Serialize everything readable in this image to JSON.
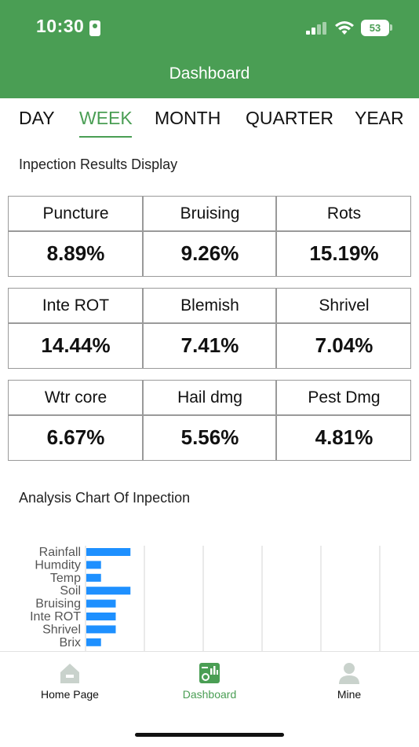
{
  "status_bar": {
    "time": "10:30",
    "battery": "53"
  },
  "header": {
    "title": "Dashboard"
  },
  "tabs": [
    {
      "label": "DAY",
      "active": false
    },
    {
      "label": "WEEK",
      "active": true
    },
    {
      "label": "MONTH",
      "active": false
    },
    {
      "label": "QUARTER",
      "active": false
    },
    {
      "label": "YEAR",
      "active": false
    }
  ],
  "results": {
    "title": "Inpection Results Display",
    "rows": [
      [
        {
          "label": "Puncture",
          "value": "8.89%"
        },
        {
          "label": "Bruising",
          "value": "9.26%"
        },
        {
          "label": "Rots",
          "value": "15.19%"
        }
      ],
      [
        {
          "label": "Inte ROT",
          "value": "14.44%"
        },
        {
          "label": "Blemish",
          "value": "7.41%"
        },
        {
          "label": "Shrivel",
          "value": "7.04%"
        }
      ],
      [
        {
          "label": "Wtr core",
          "value": "6.67%"
        },
        {
          "label": "Hail dmg",
          "value": "5.56%"
        },
        {
          "label": "Pest Dmg",
          "value": "4.81%"
        }
      ]
    ]
  },
  "analysis": {
    "title": "Analysis Chart Of Inpection"
  },
  "chart_data": {
    "type": "bar",
    "orientation": "horizontal",
    "categories": [
      "Rainfall",
      "Humdity",
      "Temp",
      "Soil",
      "Bruising",
      "Inte ROT",
      "Shrivel",
      "Brix"
    ],
    "values": [
      3,
      1,
      1,
      3,
      2,
      2,
      2,
      1
    ],
    "xlim": [
      0,
      20
    ],
    "bar_color": "#1e90ff",
    "grid": true
  },
  "tabbar": {
    "items": [
      {
        "label": "Home Page",
        "icon": "home-icon",
        "active": false
      },
      {
        "label": "Dashboard",
        "icon": "dashboard-icon",
        "active": true
      },
      {
        "label": "Mine",
        "icon": "user-icon",
        "active": false
      }
    ]
  },
  "colors": {
    "brand": "#4a9e54",
    "bar": "#1e90ff",
    "border": "#9a9a9a"
  }
}
